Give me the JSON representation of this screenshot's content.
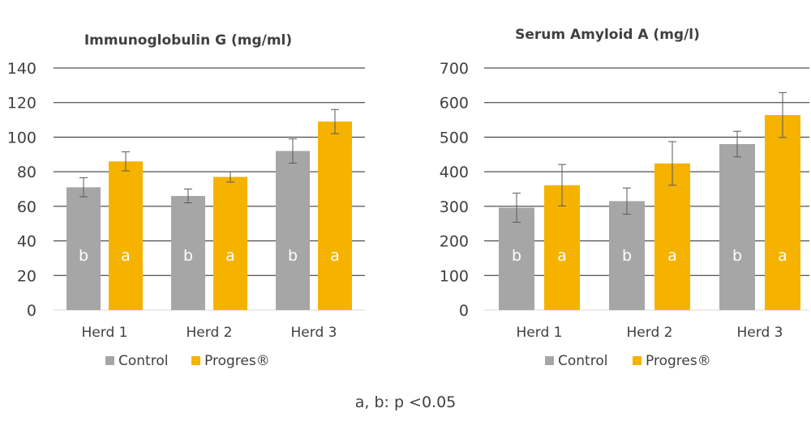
{
  "footnote": "a, b: p <0.05",
  "chart_data": [
    {
      "type": "bar",
      "title": "Immunoglobulin G (mg/ml)",
      "categories": [
        "Herd 1",
        "Herd 2",
        "Herd 3"
      ],
      "ylim": [
        0,
        140
      ],
      "yticks": [
        0,
        20,
        40,
        60,
        80,
        100,
        120,
        140
      ],
      "grid": true,
      "legend_position": "bottom",
      "series": [
        {
          "name": "Control",
          "color": "#A6A6A6",
          "values": [
            71,
            66,
            92
          ],
          "errors": [
            5.5,
            4,
            7
          ],
          "labels": [
            "b",
            "b",
            "b"
          ]
        },
        {
          "name": "Progres®",
          "color": "#F5B300",
          "values": [
            86,
            77,
            109
          ],
          "errors": [
            5.5,
            3,
            7
          ],
          "labels": [
            "a",
            "a",
            "a"
          ]
        }
      ]
    },
    {
      "type": "bar",
      "title": "Serum Amyloid A (mg/l)",
      "categories": [
        "Herd 1",
        "Herd 2",
        "Herd 3"
      ],
      "ylim": [
        0,
        700
      ],
      "yticks": [
        0,
        100,
        200,
        300,
        400,
        500,
        600,
        700
      ],
      "grid": true,
      "legend_position": "bottom",
      "series": [
        {
          "name": "Control",
          "color": "#A6A6A6",
          "values": [
            296,
            315,
            480
          ],
          "errors": [
            42,
            38,
            37
          ],
          "labels": [
            "b",
            "b",
            "b"
          ]
        },
        {
          "name": "Progres®",
          "color": "#F5B300",
          "values": [
            361,
            424,
            564
          ],
          "errors": [
            60,
            63,
            65
          ],
          "labels": [
            "a",
            "a",
            "a"
          ]
        }
      ]
    }
  ]
}
